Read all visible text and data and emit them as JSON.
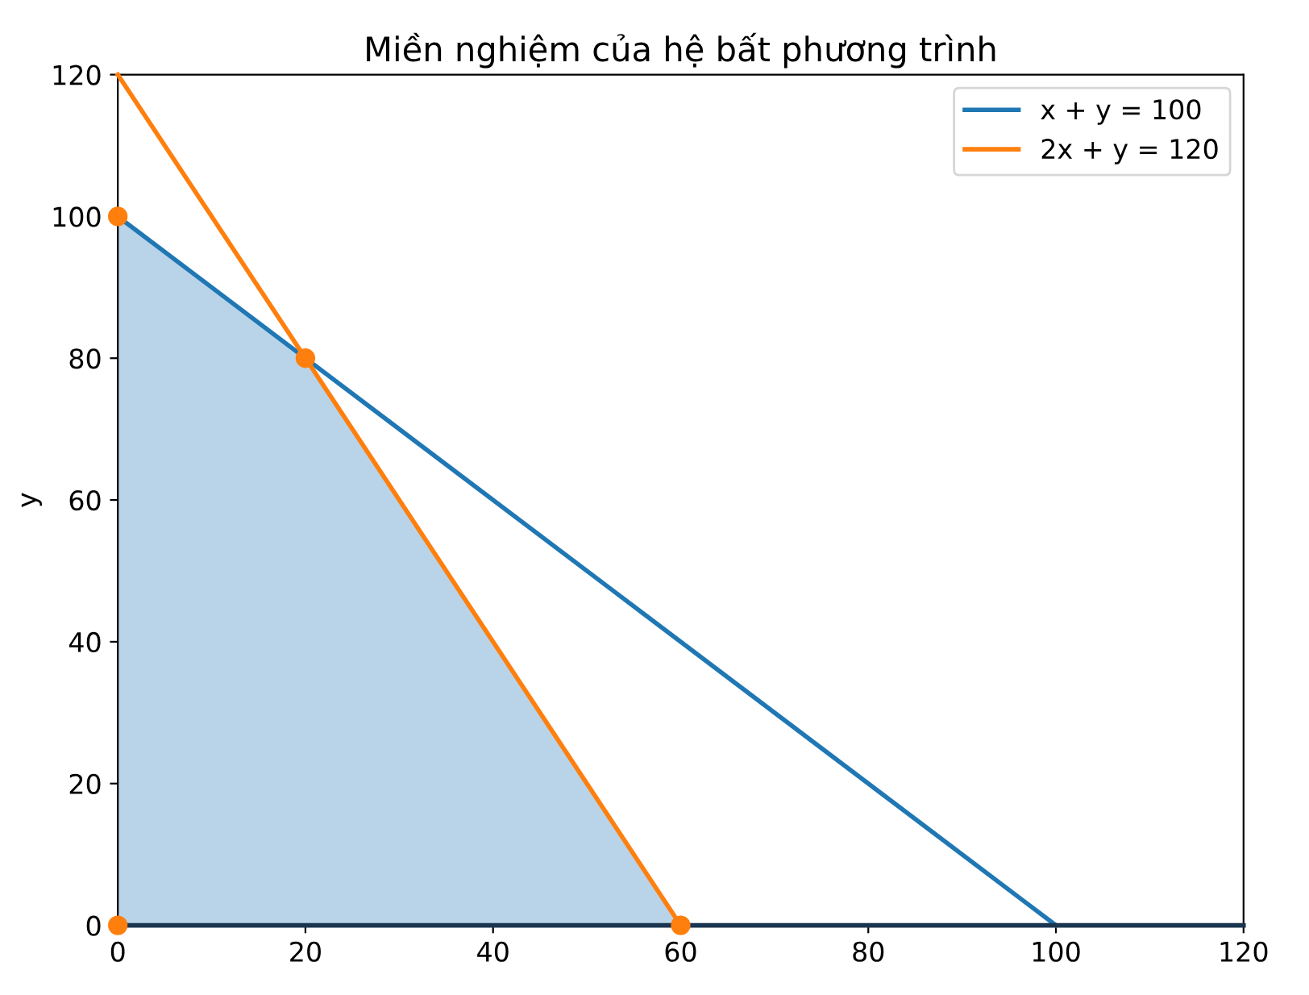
{
  "chart_data": {
    "type": "line",
    "title": "Miền nghiệm của hệ bất phương trình",
    "ylabel": "y",
    "series": [
      {
        "type": "area",
        "color": "#b9d4e8",
        "x": [
          0,
          0,
          20,
          60
        ],
        "values": [
          0,
          100,
          80,
          0
        ]
      },
      {
        "name": "x + y = 100",
        "color": "#1f77b4",
        "x": [
          0,
          100
        ],
        "values": [
          100,
          0
        ]
      },
      {
        "name": "2x + y = 120",
        "color": "#ff7f0e",
        "x": [
          0,
          60
        ],
        "values": [
          120,
          0
        ]
      },
      {
        "type": "line",
        "color": "#1a3550",
        "x": [
          0,
          120
        ],
        "values": [
          0,
          0
        ]
      },
      {
        "type": "scatter",
        "color": "#ff7f0e",
        "marker": "circle",
        "x": [
          0,
          0,
          20,
          60
        ],
        "values": [
          0,
          100,
          80,
          0
        ]
      }
    ],
    "xlim": [
      0,
      120
    ],
    "ylim": [
      0,
      120
    ],
    "xticks": [
      0,
      20,
      40,
      60,
      80,
      100,
      120
    ],
    "yticks": [
      0,
      20,
      40,
      60,
      80,
      100,
      120
    ],
    "grid": false,
    "legend": "top right",
    "line_style": "solid"
  }
}
